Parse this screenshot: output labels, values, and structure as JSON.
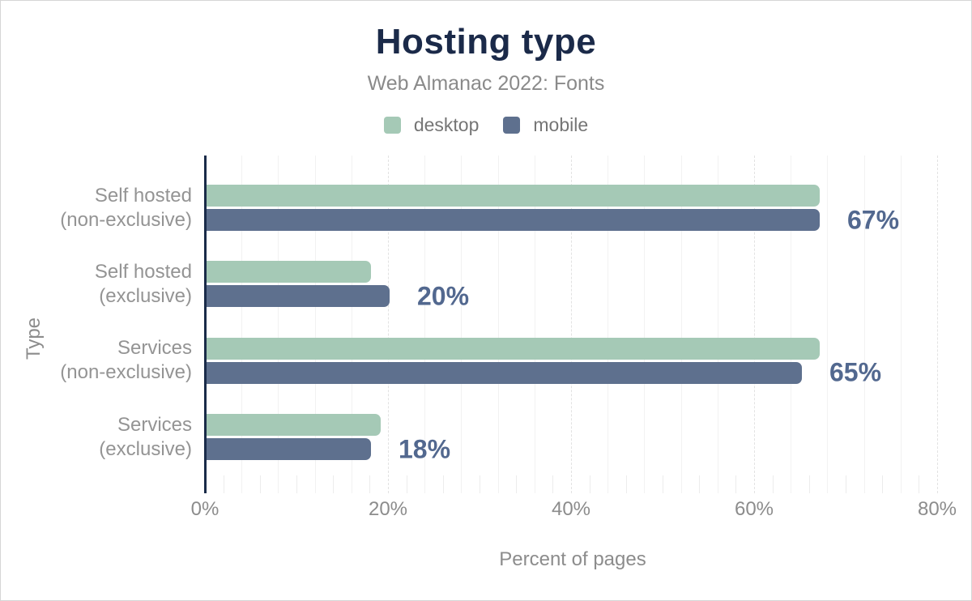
{
  "title": "Hosting type",
  "subtitle": "Web Almanac 2022: Fonts",
  "legend": [
    {
      "label": "desktop",
      "color": "#a5c9b6"
    },
    {
      "label": "mobile",
      "color": "#5e708e"
    }
  ],
  "colors": {
    "title_navy": "#1b2a49",
    "axis_line": "#1a2b49",
    "desktop_bar": "#a5c9b6",
    "mobile_bar": "#5e708e",
    "value_label": "#52688f",
    "muted_text": "#8c8c8c"
  },
  "chart_data": {
    "type": "bar",
    "orientation": "horizontal",
    "title": "Hosting type",
    "subtitle": "Web Almanac 2022: Fonts",
    "xlabel": "Percent of pages",
    "ylabel": "Type",
    "xlim": [
      0,
      80
    ],
    "x_ticks": [
      "0%",
      "20%",
      "40%",
      "60%",
      "80%"
    ],
    "x_tick_values": [
      0,
      20,
      40,
      60,
      80
    ],
    "grid": "vertical; faint solid minor lines every 4%, dashed lines at 20% majors, short ticks every 2% at bottom",
    "legend_position": "top-center",
    "categories": [
      "Self hosted (non-exclusive)",
      "Self hosted (exclusive)",
      "Services (non-exclusive)",
      "Services (exclusive)"
    ],
    "category_lines": [
      [
        "Self hosted",
        "(non-exclusive)"
      ],
      [
        "Self hosted",
        "(exclusive)"
      ],
      [
        "Services",
        "(non-exclusive)"
      ],
      [
        "Services",
        "(exclusive)"
      ]
    ],
    "series": [
      {
        "name": "desktop",
        "color": "#a5c9b6",
        "values": [
          67,
          18,
          67,
          19
        ]
      },
      {
        "name": "mobile",
        "color": "#5e708e",
        "values": [
          67,
          20,
          65,
          18
        ]
      }
    ],
    "value_labels": [
      "67%",
      "20%",
      "65%",
      "18%"
    ]
  }
}
